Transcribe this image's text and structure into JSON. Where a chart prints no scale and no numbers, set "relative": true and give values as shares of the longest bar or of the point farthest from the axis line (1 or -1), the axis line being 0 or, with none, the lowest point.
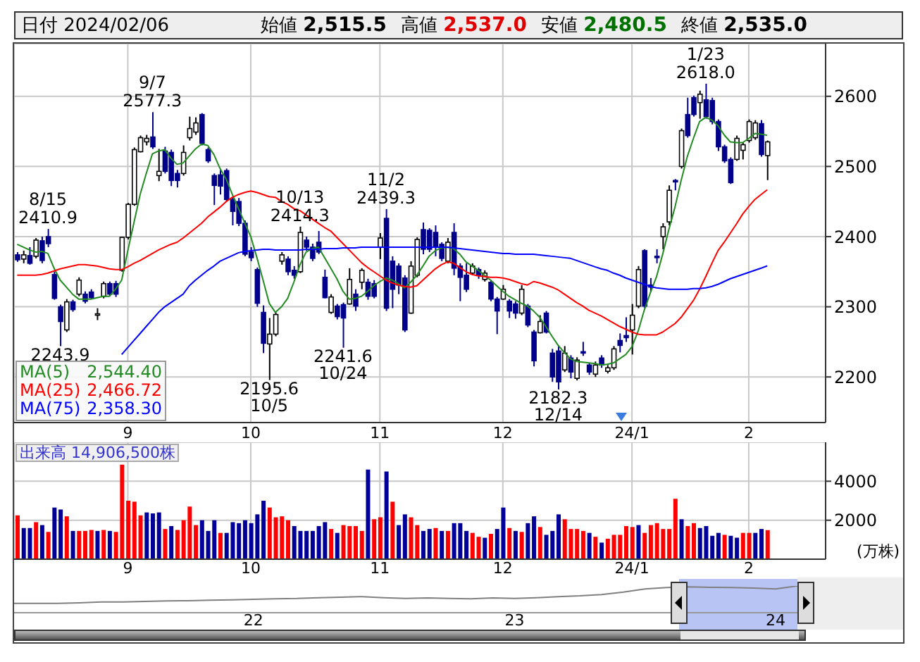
{
  "chart_data": [
    {
      "type": "candlestick",
      "title": "日付 2024/02/06",
      "annotations": [
        "始値 2,515.5",
        "高値 2,537.0",
        "安値 2,480.5",
        "終値 2,535.0",
        {
          "text": "8/15\n2410.9",
          "y": 2410.9
        },
        {
          "text": "2243.9",
          "y": 2243.9
        },
        {
          "text": "9/7\n2577.3",
          "y": 2577.3
        },
        {
          "text": "2195.6\n10/5",
          "y": 2195.6
        },
        {
          "text": "10/13\n2414.3",
          "y": 2414.3
        },
        {
          "text": "2241.6\n10/24",
          "y": 2241.6
        },
        {
          "text": "11/2\n2439.3",
          "y": 2439.3
        },
        {
          "text": "2182.3\n12/14",
          "y": 2182.3
        },
        {
          "text": "1/23\n2618.0",
          "y": 2618.0
        }
      ],
      "categories": [
        null,
        null,
        null,
        null,
        null,
        null,
        null,
        null,
        null,
        null,
        null,
        null,
        null,
        null,
        null,
        null,
        null,
        null,
        "9",
        null,
        null,
        null,
        null,
        null,
        null,
        null,
        null,
        null,
        null,
        null,
        null,
        null,
        null,
        null,
        null,
        null,
        null,
        null,
        "10",
        null,
        null,
        null,
        null,
        null,
        null,
        null,
        null,
        null,
        null,
        null,
        null,
        null,
        null,
        null,
        null,
        null,
        null,
        null,
        null,
        "11",
        null,
        null,
        null,
        null,
        null,
        null,
        null,
        null,
        null,
        null,
        null,
        null,
        null,
        null,
        null,
        null,
        null,
        null,
        null,
        "12",
        null,
        null,
        null,
        null,
        null,
        null,
        null,
        null,
        null,
        null,
        null,
        null,
        null,
        null,
        null,
        null,
        null,
        null,
        null,
        null,
        "24/1",
        null,
        null,
        null,
        null,
        null,
        null,
        null,
        null,
        null,
        null,
        null,
        null,
        null,
        null,
        null,
        null,
        null,
        null,
        "2",
        null,
        null,
        null
      ],
      "ohlc": [
        [
          2374,
          2378,
          2364,
          2367
        ],
        [
          2368,
          2380,
          2362,
          2374
        ],
        [
          2373,
          2385,
          2360,
          2362
        ],
        [
          2372,
          2398,
          2369,
          2395
        ],
        [
          2394,
          2400,
          2362,
          2366
        ],
        [
          2400,
          2410.9,
          2385,
          2390
        ],
        [
          2346,
          2350,
          2310,
          2312
        ],
        [
          2300,
          2303,
          2243.9,
          2279
        ],
        [
          2267,
          2311,
          2264,
          2307
        ],
        [
          2307,
          2310,
          2293,
          2296
        ],
        [
          2318,
          2342,
          2315,
          2338
        ],
        [
          2318,
          2322,
          2305,
          2308
        ],
        [
          2321,
          2325,
          2311,
          2313
        ],
        [
          2288,
          2298,
          2281,
          2290
        ],
        [
          2315,
          2336,
          2312,
          2333
        ],
        [
          2333,
          2336,
          2315,
          2318
        ],
        [
          2333,
          2337,
          2314,
          2318
        ],
        [
          2352,
          2400,
          2350,
          2399
        ],
        [
          2399,
          2448,
          2396,
          2446
        ],
        [
          2446,
          2527,
          2444,
          2524
        ],
        [
          2521,
          2544,
          2520,
          2541
        ],
        [
          2535,
          2545,
          2530,
          2540
        ],
        [
          2542,
          2577.3,
          2525,
          2528
        ],
        [
          2487,
          2525,
          2479,
          2493
        ],
        [
          2522,
          2528,
          2490,
          2493
        ],
        [
          2520,
          2524,
          2472,
          2480
        ],
        [
          2490,
          2495,
          2470,
          2480
        ],
        [
          2490,
          2530,
          2487,
          2520
        ],
        [
          2541,
          2571,
          2537,
          2554
        ],
        [
          2549,
          2570,
          2545,
          2562
        ],
        [
          2574,
          2576,
          2530,
          2533
        ],
        [
          2524,
          2527,
          2505,
          2508
        ],
        [
          2487,
          2490,
          2445,
          2473
        ],
        [
          2488,
          2495,
          2460,
          2472
        ],
        [
          2494,
          2497,
          2450,
          2453
        ],
        [
          2453,
          2456,
          2416,
          2436
        ],
        [
          2450,
          2455,
          2415,
          2419
        ],
        [
          2419,
          2423,
          2372,
          2375
        ],
        [
          2378,
          2385,
          2365,
          2370
        ],
        [
          2353,
          2356,
          2300,
          2305
        ],
        [
          2292,
          2302,
          2234,
          2248
        ],
        [
          2247,
          2284,
          2195.6,
          2261
        ],
        [
          2261,
          2292,
          2258,
          2289
        ],
        [
          2365,
          2378,
          2360,
          2374
        ],
        [
          2368,
          2372,
          2345,
          2350
        ],
        [
          2352,
          2358,
          2340,
          2345
        ],
        [
          2350,
          2414.3,
          2348,
          2406
        ],
        [
          2395,
          2400,
          2380,
          2385
        ],
        [
          2385,
          2390,
          2365,
          2369
        ],
        [
          2392,
          2408,
          2375,
          2378
        ],
        [
          2342,
          2353,
          2312,
          2313
        ],
        [
          2292,
          2318,
          2290,
          2314
        ],
        [
          2301,
          2304,
          2282,
          2286
        ],
        [
          2303,
          2306,
          2241.6,
          2284
        ],
        [
          2304,
          2355,
          2303,
          2339
        ],
        [
          2318,
          2325,
          2294,
          2301
        ],
        [
          2335,
          2355,
          2325,
          2352
        ],
        [
          2335,
          2340,
          2310,
          2315
        ],
        [
          2333,
          2338,
          2312,
          2315
        ],
        [
          2385,
          2405,
          2368,
          2398
        ],
        [
          2426,
          2439.3,
          2294,
          2298
        ],
        [
          2365,
          2372,
          2298,
          2325
        ],
        [
          2358,
          2362,
          2318,
          2331
        ],
        [
          2341,
          2345,
          2264,
          2267
        ],
        [
          2291,
          2365,
          2290,
          2358
        ],
        [
          2345,
          2399,
          2342,
          2396
        ],
        [
          2410,
          2420,
          2375,
          2382
        ],
        [
          2409,
          2412,
          2378,
          2382
        ],
        [
          2406,
          2416,
          2372,
          2385
        ],
        [
          2389,
          2392,
          2365,
          2369
        ],
        [
          2365,
          2398,
          2362,
          2392
        ],
        [
          2406,
          2419,
          2345,
          2355
        ],
        [
          2358,
          2362,
          2308,
          2342
        ],
        [
          2345,
          2362,
          2321,
          2325
        ],
        [
          2348,
          2362,
          2345,
          2358
        ],
        [
          2353,
          2356,
          2340,
          2345
        ],
        [
          2339,
          2352,
          2336,
          2348
        ],
        [
          2335,
          2338,
          2308,
          2311
        ],
        [
          2311,
          2314,
          2261,
          2294
        ],
        [
          2311,
          2331,
          2310,
          2325
        ],
        [
          2308,
          2311,
          2284,
          2294
        ],
        [
          2304,
          2308,
          2283,
          2291
        ],
        [
          2291,
          2331,
          2288,
          2325
        ],
        [
          2301,
          2304,
          2271,
          2274
        ],
        [
          2264,
          2267,
          2215,
          2223
        ],
        [
          2263,
          2288,
          2262,
          2279
        ],
        [
          2291,
          2294,
          2262,
          2264
        ],
        [
          2234,
          2240,
          2193,
          2200
        ],
        [
          2237,
          2245,
          2182.3,
          2193
        ],
        [
          2210,
          2244,
          2207,
          2234
        ],
        [
          2227,
          2231,
          2198,
          2207
        ],
        [
          2198,
          2228,
          2195,
          2224
        ],
        [
          2236,
          2250,
          2230,
          2234
        ],
        [
          2217,
          2220,
          2203,
          2207
        ],
        [
          2204,
          2222,
          2200,
          2217
        ],
        [
          2227,
          2231,
          2213,
          2217
        ],
        [
          2208,
          2217,
          2205,
          2213
        ],
        [
          2213,
          2244,
          2210,
          2240
        ],
        [
          2252,
          2262,
          2235,
          2245
        ],
        [
          2259,
          2285,
          2250,
          2256
        ],
        [
          2267,
          2304,
          2232,
          2288
        ],
        [
          2301,
          2358,
          2298,
          2353
        ],
        [
          2380,
          2382,
          2298,
          2301
        ],
        [
          2331,
          2341,
          2321,
          2328
        ],
        [
          2372,
          2382,
          2362,
          2371
        ],
        [
          2400,
          2419,
          2382,
          2414
        ],
        [
          2421,
          2473,
          2416,
          2466
        ],
        [
          2480,
          2482,
          2466,
          2478
        ],
        [
          2500,
          2554,
          2497,
          2551
        ],
        [
          2574,
          2598,
          2541,
          2544
        ],
        [
          2598,
          2601,
          2571,
          2574
        ],
        [
          2591,
          2608,
          2568,
          2603
        ],
        [
          2595,
          2618.0,
          2568,
          2571
        ],
        [
          2594,
          2598,
          2560,
          2564
        ],
        [
          2564,
          2567,
          2522,
          2528
        ],
        [
          2528,
          2531,
          2505,
          2508
        ],
        [
          2510,
          2513,
          2475,
          2477
        ],
        [
          2510,
          2544,
          2508,
          2540
        ],
        [
          2523,
          2534,
          2510,
          2531
        ],
        [
          2537,
          2567,
          2534,
          2564
        ],
        [
          2541,
          2566,
          2538,
          2562
        ],
        [
          2561,
          2566,
          2514,
          2517
        ],
        [
          2515.5,
          2537.0,
          2480.5,
          2535.0
        ]
      ],
      "series": [
        {
          "name": "MA(5) 2,544.40",
          "type": "line",
          "color": "#228b22",
          "values": [
            2389,
            2385,
            2381,
            2378,
            2379,
            2376,
            2355,
            2338,
            2328,
            2318,
            2311,
            2311,
            2311,
            2313,
            2315,
            2315,
            2325,
            2338,
            2380,
            2420,
            2460,
            2490,
            2518,
            2522,
            2524,
            2512,
            2503,
            2505,
            2515,
            2525,
            2532,
            2530,
            2517,
            2497,
            2482,
            2460,
            2440,
            2420,
            2400,
            2370,
            2338,
            2305,
            2292,
            2300,
            2312,
            2335,
            2360,
            2378,
            2383,
            2385,
            2370,
            2355,
            2340,
            2322,
            2311,
            2312,
            2315,
            2322,
            2330,
            2336,
            2341,
            2338,
            2333,
            2327,
            2335,
            2345,
            2358,
            2372,
            2380,
            2384,
            2385,
            2383,
            2375,
            2364,
            2358,
            2352,
            2345,
            2338,
            2330,
            2322,
            2315,
            2310,
            2305,
            2301,
            2294,
            2285,
            2272,
            2258,
            2245,
            2235,
            2226,
            2222,
            2221,
            2220,
            2219,
            2217,
            2218,
            2220,
            2226,
            2232,
            2243,
            2265,
            2295,
            2320,
            2343,
            2375,
            2410,
            2442,
            2480,
            2514,
            2540,
            2564,
            2570,
            2566,
            2558,
            2545,
            2535,
            2534,
            2534,
            2540,
            2547,
            2546,
            2544.4
          ]
        },
        {
          "name": "MA(25) 2,466.72",
          "type": "line",
          "color": "#ff0000",
          "values": [
            2345,
            2345,
            2345,
            2345,
            2346,
            2348,
            2351,
            2354,
            2356,
            2358,
            2360,
            2360,
            2359,
            2358,
            2356,
            2354,
            2353,
            2353,
            2357,
            2362,
            2366,
            2371,
            2376,
            2381,
            2385,
            2389,
            2392,
            2398,
            2405,
            2412,
            2419,
            2428,
            2435,
            2442,
            2450,
            2456,
            2460,
            2463,
            2465,
            2463,
            2460,
            2457,
            2456,
            2450,
            2446,
            2440,
            2437,
            2431,
            2425,
            2419,
            2413,
            2408,
            2399,
            2390,
            2381,
            2372,
            2363,
            2356,
            2350,
            2344,
            2338,
            2334,
            2331,
            2329,
            2328,
            2330,
            2338,
            2346,
            2354,
            2360,
            2364,
            2362,
            2356,
            2350,
            2346,
            2344,
            2343,
            2342,
            2342,
            2341,
            2339,
            2336,
            2333,
            2331,
            2336,
            2334,
            2331,
            2328,
            2324,
            2318,
            2312,
            2306,
            2301,
            2295,
            2291,
            2287,
            2282,
            2277,
            2272,
            2268,
            2264,
            2261,
            2260,
            2260,
            2260,
            2264,
            2270,
            2276,
            2285,
            2297,
            2309,
            2325,
            2343,
            2362,
            2380,
            2392,
            2405,
            2418,
            2432,
            2443,
            2453,
            2460,
            2466.72
          ]
        },
        {
          "name": "MA(75) 2,358.30",
          "type": "line",
          "color": "#0000ff",
          "values": [
            null,
            null,
            null,
            null,
            null,
            null,
            null,
            null,
            null,
            null,
            null,
            null,
            null,
            null,
            null,
            null,
            null,
            2232,
            2242,
            2252,
            2262,
            2272,
            2282,
            2292,
            2300,
            2306,
            2312,
            2318,
            2330,
            2338,
            2345,
            2352,
            2358,
            2365,
            2369,
            2373,
            2377,
            2379,
            2380,
            2381,
            2382,
            2382,
            2381,
            2381,
            2381,
            2381,
            2381,
            2382,
            2382,
            2382,
            2383,
            2383,
            2383,
            2384,
            2384,
            2384,
            2385,
            2385,
            2385,
            2385,
            2385,
            2385,
            2385,
            2385,
            2385,
            2385,
            2385,
            2385,
            2385,
            2385,
            2385,
            2384,
            2383,
            2382,
            2381,
            2380,
            2379,
            2378,
            2377,
            2376,
            2376,
            2375,
            2375,
            2375,
            2375,
            2374,
            2373,
            2372,
            2371,
            2370,
            2369,
            2366,
            2363,
            2360,
            2357,
            2354,
            2352,
            2348,
            2345,
            2341,
            2338,
            2335,
            2332,
            2329,
            2327,
            2326,
            2325,
            2325,
            2325,
            2325,
            2326,
            2326,
            2327,
            2329,
            2332,
            2336,
            2340,
            2343,
            2346,
            2349,
            2352,
            2355,
            2358.3
          ]
        }
      ],
      "ylim": [
        2135,
        2675
      ],
      "yticks": [
        2200,
        2300,
        2400,
        2500,
        2600
      ],
      "grid": true,
      "legend": "bottom left"
    },
    {
      "type": "bar",
      "title": "出来高 14,906,500株",
      "ylabel": "(万株)",
      "categories": [
        null,
        null,
        null,
        null,
        null,
        null,
        null,
        null,
        null,
        null,
        null,
        null,
        null,
        null,
        null,
        null,
        null,
        null,
        "9",
        null,
        null,
        null,
        null,
        null,
        null,
        null,
        null,
        null,
        null,
        null,
        null,
        null,
        null,
        null,
        null,
        null,
        null,
        null,
        "10",
        null,
        null,
        null,
        null,
        null,
        null,
        null,
        null,
        null,
        null,
        null,
        null,
        null,
        null,
        null,
        null,
        null,
        null,
        null,
        null,
        "11",
        null,
        null,
        null,
        null,
        null,
        null,
        null,
        null,
        null,
        null,
        null,
        null,
        null,
        null,
        null,
        null,
        null,
        null,
        null,
        "12",
        null,
        null,
        null,
        null,
        null,
        null,
        null,
        null,
        null,
        null,
        null,
        null,
        null,
        null,
        null,
        null,
        null,
        null,
        null,
        null,
        "24/1",
        null,
        null,
        null,
        null,
        null,
        null,
        null,
        null,
        null,
        null,
        null,
        null,
        null,
        null,
        null,
        null,
        null,
        null,
        "2",
        null,
        null,
        null
      ],
      "values": [
        2250,
        1600,
        1600,
        1900,
        1750,
        1400,
        2650,
        2550,
        2200,
        1450,
        1450,
        1450,
        1500,
        1450,
        1500,
        1450,
        1400,
        4850,
        3000,
        2950,
        2250,
        2400,
        2350,
        2400,
        1550,
        1700,
        1500,
        2000,
        2700,
        1750,
        2000,
        1450,
        2000,
        1350,
        1350,
        1900,
        1850,
        2000,
        1850,
        2300,
        3000,
        2650,
        2150,
        2200,
        2000,
        1700,
        1450,
        1450,
        1450,
        1700,
        1900,
        1550,
        1350,
        1750,
        1700,
        1700,
        1450,
        4600,
        2050,
        2150,
        4500,
        2950,
        1750,
        2300,
        2150,
        1750,
        1450,
        1550,
        1600,
        1450,
        1450,
        1850,
        1850,
        1450,
        1350,
        1150,
        1100,
        1300,
        1550,
        2650,
        1600,
        1450,
        1400,
        1850,
        2200,
        1650,
        1250,
        1450,
        2300,
        2050,
        1550,
        1550,
        1450,
        1350,
        1150,
        850,
        1050,
        1250,
        1250,
        1700,
        1650,
        1750,
        1350,
        1750,
        1850,
        1550,
        1550,
        3100,
        2050,
        1700,
        1850,
        1600,
        1700,
        1200,
        1350,
        1250,
        1200,
        1100,
        1350,
        1350,
        1350,
        1550,
        1490.65
      ],
      "colors": [
        "#ff0000",
        "#000099",
        "#000099",
        "#ff0000",
        "#000099",
        "#ff0000",
        "#000099",
        "#000099",
        "#ff0000",
        "#000099",
        "#ff0000",
        "#ff0000",
        "#ff0000",
        "#000099",
        "#ff0000",
        "#000099",
        "#ff0000",
        "#ff0000",
        "#ff0000",
        "#ff0000",
        "#ff0000",
        "#000099",
        "#000099",
        "#000099",
        "#ff0000",
        "#000099",
        "#ff0000",
        "#ff0000",
        "#ff0000",
        "#ff0000",
        "#000099",
        "#000099",
        "#000099",
        "#ff0000",
        "#000099",
        "#000099",
        "#000099",
        "#000099",
        "#000099",
        "#000099",
        "#000099",
        "#ff0000",
        "#ff0000",
        "#ff0000",
        "#ff0000",
        "#000099",
        "#000099",
        "#000099",
        "#000099",
        "#000099",
        "#000099",
        "#ff0000",
        "#000099",
        "#ff0000",
        "#ff0000",
        "#ff0000",
        "#ff0000",
        "#000099",
        "#ff0000",
        "#ff0000",
        "#000099",
        "#ff0000",
        "#000099",
        "#000099",
        "#ff0000",
        "#ff0000",
        "#000099",
        "#000099",
        "#ff0000",
        "#000099",
        "#ff0000",
        "#000099",
        "#000099",
        "#000099",
        "#ff0000",
        "#ff0000",
        "#000099",
        "#ff0000",
        "#000099",
        "#000099",
        "#ff0000",
        "#000099",
        "#ff0000",
        "#000099",
        "#000099",
        "#ff0000",
        "#000099",
        "#000099",
        "#000099",
        "#ff0000",
        "#ff0000",
        "#ff0000",
        "#ff0000",
        "#000099",
        "#ff0000",
        "#000099",
        "#ff0000",
        "#ff0000",
        "#ff0000",
        "#ff0000",
        "#ff0000",
        "#000099",
        "#ff0000",
        "#ff0000",
        "#ff0000",
        "#ff0000",
        "#ff0000",
        "#ff0000",
        "#000099",
        "#ff0000",
        "#ff0000",
        "#000099",
        "#000099",
        "#000099",
        "#000099",
        "#ff0000",
        "#000099",
        "#000099",
        "#ff0000",
        "#ff0000",
        "#000099",
        "#000099",
        "#ff0000"
      ],
      "ylim": [
        0,
        6000
      ],
      "yticks": [
        2000,
        4000
      ],
      "grid": true
    },
    {
      "type": "line",
      "relative": true,
      "tick_labels": "x",
      "color": "#808080",
      "categories": [
        null,
        null,
        null,
        null,
        null,
        null,
        null,
        null,
        null,
        null,
        null,
        "22",
        null,
        null,
        null,
        null,
        null,
        null,
        null,
        null,
        null,
        null,
        null,
        "23",
        null,
        null,
        null,
        null,
        null,
        null,
        null,
        null,
        null,
        null,
        null,
        "24",
        null
      ],
      "values": [
        0.35,
        0.35,
        0.35,
        0.37,
        0.4,
        0.4,
        0.42,
        0.44,
        0.45,
        0.47,
        0.48,
        0.5,
        0.52,
        0.53,
        0.56,
        0.58,
        0.6,
        0.56,
        0.53,
        0.55,
        0.53,
        0.52,
        0.55,
        0.53,
        0.56,
        0.6,
        0.63,
        0.68,
        0.77,
        0.89,
        0.94,
        0.97,
        0.95,
        0.94,
        0.92,
        0.89,
        1
      ]
    }
  ]
}
